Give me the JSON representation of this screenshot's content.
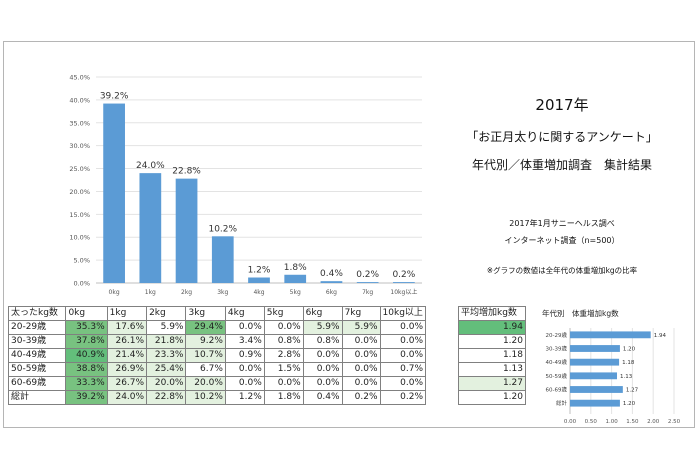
{
  "report": {
    "year": "2017年",
    "survey_title": "「お正月太りに関するアンケート」",
    "result_title": "年代別／体重増加調査　集計結果",
    "source": "2017年1月サニーヘルス調べ",
    "method": "インターネット調査（n=500）",
    "note": "※グラフの数値は全年代の体重増加kgの比率"
  },
  "chart_data": [
    {
      "type": "bar",
      "categories": [
        "0kg",
        "1kg",
        "2kg",
        "3kg",
        "4kg",
        "5kg",
        "6kg",
        "7kg",
        "10kg以上"
      ],
      "values": [
        39.2,
        24.0,
        22.8,
        10.2,
        1.2,
        1.8,
        0.4,
        0.2,
        0.2
      ],
      "data_labels": [
        "39.2%",
        "24.0%",
        "22.8%",
        "10.2%",
        "1.2%",
        "1.8%",
        "0.4%",
        "0.2%",
        "0.2%"
      ],
      "y_ticks": [
        "0.0%",
        "5.0%",
        "10.0%",
        "15.0%",
        "20.0%",
        "25.0%",
        "30.0%",
        "35.0%",
        "40.0%",
        "45.0%"
      ],
      "ylim": [
        0,
        45
      ],
      "grid": true,
      "color": "#5b9bd5"
    },
    {
      "type": "bar",
      "orientation": "horizontal",
      "title": "年代別　体重増加kg数",
      "categories": [
        "20-29歳",
        "30-39歳",
        "40-49歳",
        "50-59歳",
        "60-69歳",
        "総計"
      ],
      "values": [
        1.94,
        1.2,
        1.18,
        1.13,
        1.27,
        1.2
      ],
      "data_labels": [
        "1.94",
        "1.20",
        "1.18",
        "1.13",
        "1.27",
        "1.20"
      ],
      "x_ticks": [
        "0.00",
        "0.50",
        "1.00",
        "1.50",
        "2.00",
        "2.50"
      ],
      "xlim": [
        0,
        2.5
      ],
      "color": "#5b9bd5"
    }
  ],
  "table": {
    "headers": [
      "太ったkg数",
      "0kg",
      "1kg",
      "2kg",
      "3kg",
      "4kg",
      "5kg",
      "6kg",
      "7kg",
      "10kg以上"
    ],
    "rows": [
      {
        "label": "20-29歳",
        "cells": [
          "35.3%",
          "17.6%",
          "5.9%",
          "29.4%",
          "0.0%",
          "0.0%",
          "5.9%",
          "5.9%",
          "0.0%"
        ],
        "shade": [
          2,
          1,
          0,
          2,
          0,
          0,
          1,
          1,
          0
        ]
      },
      {
        "label": "30-39歳",
        "cells": [
          "37.8%",
          "26.1%",
          "21.8%",
          "9.2%",
          "3.4%",
          "0.8%",
          "0.8%",
          "0.0%",
          "0.0%"
        ],
        "shade": [
          2,
          1,
          1,
          1,
          0,
          0,
          0,
          0,
          0
        ]
      },
      {
        "label": "40-49歳",
        "cells": [
          "40.9%",
          "21.4%",
          "23.3%",
          "10.7%",
          "0.9%",
          "2.8%",
          "0.0%",
          "0.0%",
          "0.0%"
        ],
        "shade": [
          3,
          1,
          1,
          1,
          0,
          0,
          0,
          0,
          0
        ]
      },
      {
        "label": "50-59歳",
        "cells": [
          "38.8%",
          "26.9%",
          "25.4%",
          "6.7%",
          "0.0%",
          "1.5%",
          "0.0%",
          "0.0%",
          "0.7%"
        ],
        "shade": [
          2,
          1,
          1,
          0,
          0,
          0,
          0,
          0,
          0
        ]
      },
      {
        "label": "60-69歳",
        "cells": [
          "33.3%",
          "26.7%",
          "20.0%",
          "20.0%",
          "0.0%",
          "0.0%",
          "0.0%",
          "0.0%",
          "0.0%"
        ],
        "shade": [
          2,
          1,
          1,
          1,
          0,
          0,
          0,
          0,
          0
        ]
      },
      {
        "label": "総計",
        "cells": [
          "39.2%",
          "24.0%",
          "22.8%",
          "10.2%",
          "1.2%",
          "1.8%",
          "0.4%",
          "0.2%",
          "0.2%"
        ],
        "shade": [
          2,
          1,
          1,
          1,
          0,
          0,
          0,
          0,
          0
        ]
      }
    ],
    "shade_colors": [
      "#ffffff",
      "#e3f1df",
      "#78c280",
      "#63be7b"
    ]
  },
  "avg_table": {
    "header": "平均増加kg数",
    "values": [
      "1.94",
      "1.20",
      "1.18",
      "1.13",
      "1.27",
      "1.20"
    ],
    "shade": [
      3,
      0,
      0,
      0,
      1,
      0
    ]
  }
}
